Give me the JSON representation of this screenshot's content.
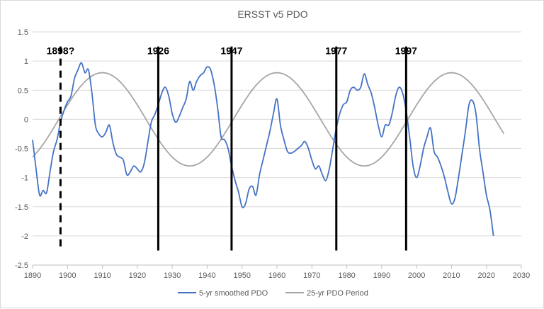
{
  "chart_data": {
    "type": "line",
    "title": "ERSST v5 PDO",
    "xlim": [
      1890,
      2030
    ],
    "ylim": [
      -2.5,
      1.5
    ],
    "x_ticks": [
      1890,
      1900,
      1910,
      1920,
      1930,
      1940,
      1950,
      1960,
      1970,
      1980,
      1990,
      2000,
      2010,
      2020,
      2030
    ],
    "y_ticks": [
      -2.5,
      -2,
      -1.5,
      -1,
      -0.5,
      0,
      0.5,
      1,
      1.5
    ],
    "x_tick_labels": [
      "1890",
      "1900",
      "1910",
      "1920",
      "1930",
      "1940",
      "1950",
      "1960",
      "1970",
      "1980",
      "1990",
      "2000",
      "2010",
      "2020",
      "2030"
    ],
    "y_tick_labels": [
      "-2.5",
      "-2",
      "-1.5",
      "-1",
      "-0.5",
      "0",
      "0.5",
      "1",
      "1.5"
    ],
    "grid": "horizontal",
    "legend_position": "bottom",
    "series": [
      {
        "name": "5-yr smoothed PDO",
        "color": "#4472c4",
        "points": [
          [
            1890,
            -0.35
          ],
          [
            1891,
            -0.85
          ],
          [
            1892,
            -1.3
          ],
          [
            1893,
            -1.22
          ],
          [
            1894,
            -1.26
          ],
          [
            1895,
            -0.9
          ],
          [
            1896,
            -0.55
          ],
          [
            1897,
            -0.35
          ],
          [
            1898,
            -0.05
          ],
          [
            1899,
            0.15
          ],
          [
            1900,
            0.3
          ],
          [
            1901,
            0.4
          ],
          [
            1902,
            0.7
          ],
          [
            1903,
            0.85
          ],
          [
            1904,
            0.97
          ],
          [
            1905,
            0.8
          ],
          [
            1906,
            0.85
          ],
          [
            1907,
            0.45
          ],
          [
            1908,
            -0.1
          ],
          [
            1909,
            -0.25
          ],
          [
            1910,
            -0.3
          ],
          [
            1911,
            -0.22
          ],
          [
            1912,
            -0.1
          ],
          [
            1913,
            -0.4
          ],
          [
            1914,
            -0.6
          ],
          [
            1915,
            -0.65
          ],
          [
            1916,
            -0.7
          ],
          [
            1917,
            -0.95
          ],
          [
            1918,
            -0.9
          ],
          [
            1919,
            -0.8
          ],
          [
            1920,
            -0.85
          ],
          [
            1921,
            -0.9
          ],
          [
            1922,
            -0.75
          ],
          [
            1923,
            -0.4
          ],
          [
            1924,
            -0.05
          ],
          [
            1925,
            0.08
          ],
          [
            1926,
            0.25
          ],
          [
            1927,
            0.45
          ],
          [
            1928,
            0.55
          ],
          [
            1929,
            0.4
          ],
          [
            1930,
            0.1
          ],
          [
            1931,
            -0.05
          ],
          [
            1932,
            0.05
          ],
          [
            1933,
            0.2
          ],
          [
            1934,
            0.35
          ],
          [
            1935,
            0.65
          ],
          [
            1936,
            0.5
          ],
          [
            1937,
            0.65
          ],
          [
            1938,
            0.75
          ],
          [
            1939,
            0.8
          ],
          [
            1940,
            0.9
          ],
          [
            1941,
            0.85
          ],
          [
            1942,
            0.6
          ],
          [
            1943,
            0.2
          ],
          [
            1944,
            -0.3
          ],
          [
            1945,
            -0.35
          ],
          [
            1946,
            -0.5
          ],
          [
            1947,
            -0.8
          ],
          [
            1948,
            -1.05
          ],
          [
            1949,
            -1.25
          ],
          [
            1950,
            -1.5
          ],
          [
            1951,
            -1.45
          ],
          [
            1952,
            -1.2
          ],
          [
            1953,
            -1.15
          ],
          [
            1954,
            -1.3
          ],
          [
            1955,
            -0.95
          ],
          [
            1956,
            -0.7
          ],
          [
            1957,
            -0.45
          ],
          [
            1958,
            -0.2
          ],
          [
            1959,
            0.1
          ],
          [
            1960,
            0.35
          ],
          [
            1961,
            -0.1
          ],
          [
            1962,
            -0.35
          ],
          [
            1963,
            -0.55
          ],
          [
            1964,
            -0.58
          ],
          [
            1965,
            -0.55
          ],
          [
            1966,
            -0.5
          ],
          [
            1967,
            -0.45
          ],
          [
            1968,
            -0.38
          ],
          [
            1969,
            -0.5
          ],
          [
            1970,
            -0.7
          ],
          [
            1971,
            -0.85
          ],
          [
            1972,
            -0.8
          ],
          [
            1973,
            -0.95
          ],
          [
            1974,
            -1.05
          ],
          [
            1975,
            -0.85
          ],
          [
            1976,
            -0.5
          ],
          [
            1977,
            -0.15
          ],
          [
            1978,
            0.1
          ],
          [
            1979,
            0.25
          ],
          [
            1980,
            0.3
          ],
          [
            1981,
            0.5
          ],
          [
            1982,
            0.55
          ],
          [
            1983,
            0.5
          ],
          [
            1984,
            0.55
          ],
          [
            1985,
            0.78
          ],
          [
            1986,
            0.6
          ],
          [
            1987,
            0.45
          ],
          [
            1988,
            0.2
          ],
          [
            1989,
            -0.1
          ],
          [
            1990,
            -0.3
          ],
          [
            1991,
            -0.1
          ],
          [
            1992,
            -0.1
          ],
          [
            1993,
            0.1
          ],
          [
            1994,
            0.4
          ],
          [
            1995,
            0.55
          ],
          [
            1996,
            0.45
          ],
          [
            1997,
            0.15
          ],
          [
            1998,
            -0.3
          ],
          [
            1999,
            -0.8
          ],
          [
            2000,
            -1.0
          ],
          [
            2001,
            -0.8
          ],
          [
            2002,
            -0.5
          ],
          [
            2003,
            -0.3
          ],
          [
            2004,
            -0.15
          ],
          [
            2005,
            -0.55
          ],
          [
            2006,
            -0.65
          ],
          [
            2007,
            -0.8
          ],
          [
            2008,
            -1.0
          ],
          [
            2009,
            -1.25
          ],
          [
            2010,
            -1.45
          ],
          [
            2011,
            -1.35
          ],
          [
            2012,
            -1.0
          ],
          [
            2013,
            -0.6
          ],
          [
            2014,
            -0.2
          ],
          [
            2015,
            0.25
          ],
          [
            2016,
            0.32
          ],
          [
            2017,
            0.1
          ],
          [
            2018,
            -0.5
          ],
          [
            2019,
            -0.9
          ],
          [
            2020,
            -1.3
          ],
          [
            2021,
            -1.55
          ],
          [
            2022,
            -2.0
          ]
        ]
      },
      {
        "name": "25-yr PDO Period",
        "color": "#a6a6a6",
        "sinusoid": {
          "amplitude": 0.8,
          "period": 50,
          "peak_year": 1910,
          "start": 1890,
          "end": 2025
        }
      }
    ],
    "annotations": [
      {
        "x": 1898,
        "label": "1898?",
        "style": "dashed"
      },
      {
        "x": 1926,
        "label": "1926",
        "style": "solid"
      },
      {
        "x": 1947,
        "label": "1947",
        "style": "solid"
      },
      {
        "x": 1977,
        "label": "1977",
        "style": "solid"
      },
      {
        "x": 1997,
        "label": "1997",
        "style": "solid"
      }
    ]
  }
}
